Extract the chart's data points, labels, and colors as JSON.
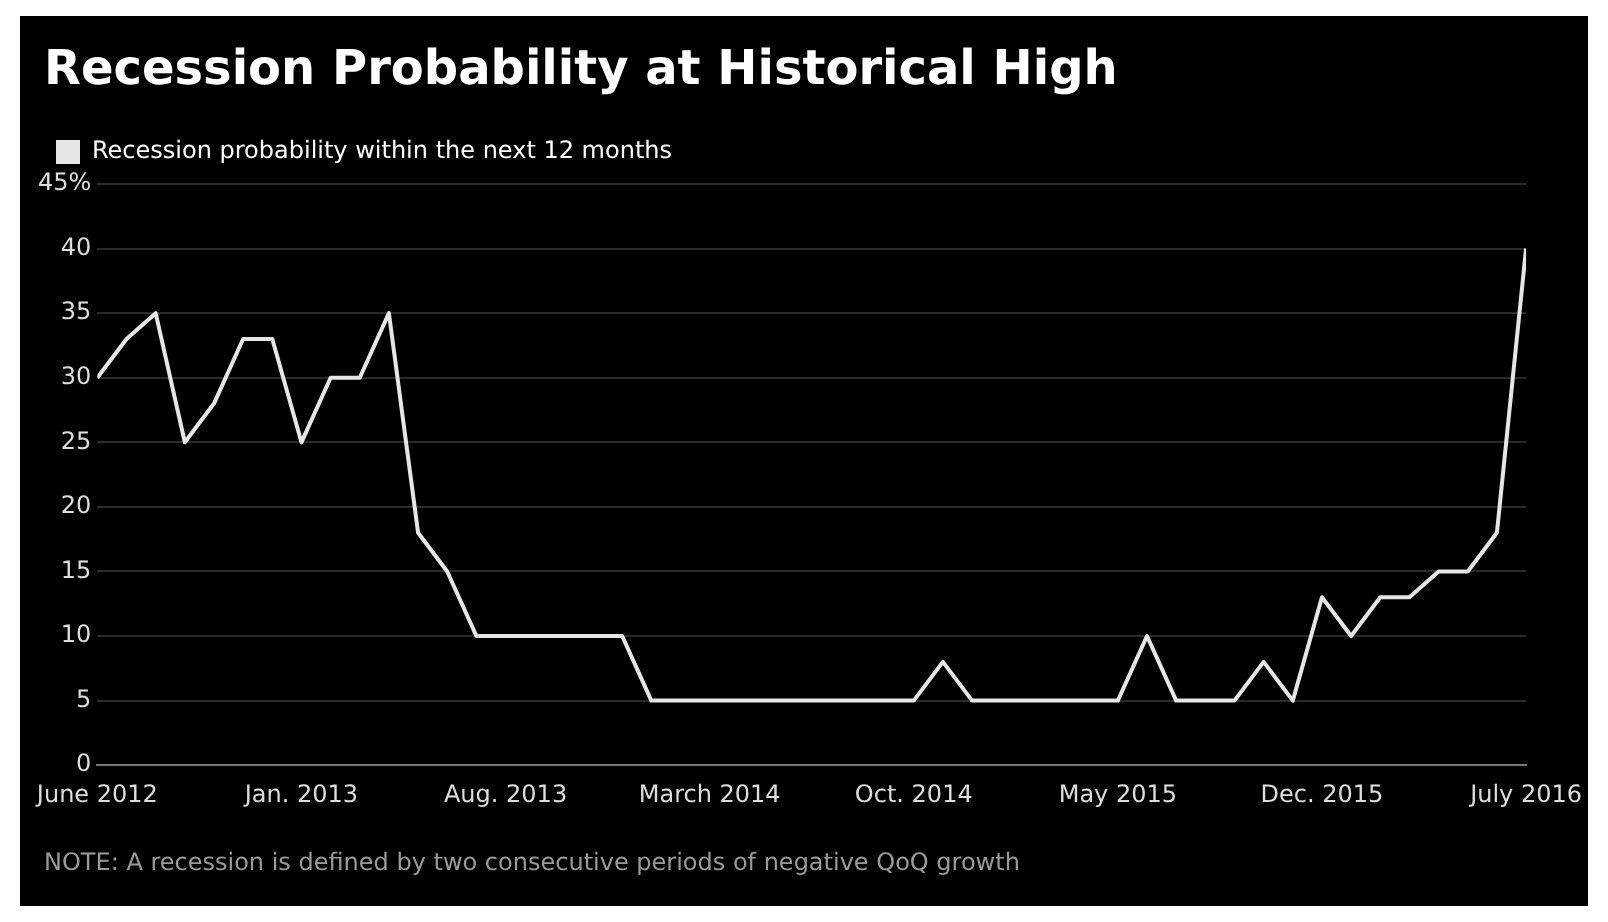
{
  "chart_data": {
    "type": "line",
    "title": "Recession Probability at Historical High",
    "x": [
      "2012-06",
      "2012-07",
      "2012-08",
      "2012-09",
      "2012-10",
      "2012-11",
      "2012-12",
      "2013-01",
      "2013-02",
      "2013-03",
      "2013-04",
      "2013-05",
      "2013-06",
      "2013-07",
      "2013-08",
      "2013-09",
      "2013-10",
      "2013-11",
      "2013-12",
      "2014-01",
      "2014-02",
      "2014-03",
      "2014-04",
      "2014-05",
      "2014-06",
      "2014-07",
      "2014-08",
      "2014-09",
      "2014-10",
      "2014-11",
      "2014-12",
      "2015-01",
      "2015-02",
      "2015-03",
      "2015-04",
      "2015-05",
      "2015-06",
      "2015-07",
      "2015-08",
      "2015-09",
      "2015-10",
      "2015-11",
      "2015-12",
      "2016-01",
      "2016-02",
      "2016-03",
      "2016-04",
      "2016-05",
      "2016-06",
      "2016-07"
    ],
    "series": [
      {
        "name": "Recession probability within the next 12 months",
        "color": "#e6e6e6",
        "values": [
          30,
          33,
          35,
          25,
          28,
          33,
          33,
          25,
          30,
          30,
          35,
          18,
          15,
          10,
          10,
          10,
          10,
          10,
          10,
          5,
          5,
          5,
          5,
          5,
          5,
          5,
          5,
          5,
          5,
          8,
          5,
          5,
          5,
          5,
          5,
          5,
          10,
          5,
          5,
          5,
          8,
          5,
          13,
          10,
          13,
          13,
          15,
          15,
          18,
          40
        ]
      }
    ],
    "xlim": [
      "2012-06",
      "2016-07"
    ],
    "xticks": [
      {
        "value": "2012-06",
        "label": "June 2012"
      },
      {
        "value": "2013-01",
        "label": "Jan. 2013"
      },
      {
        "value": "2013-08",
        "label": "Aug. 2013"
      },
      {
        "value": "2014-03",
        "label": "March 2014"
      },
      {
        "value": "2014-10",
        "label": "Oct. 2014"
      },
      {
        "value": "2015-05",
        "label": "May 2015"
      },
      {
        "value": "2015-12",
        "label": "Dec. 2015"
      },
      {
        "value": "2016-07",
        "label": "July 2016"
      }
    ],
    "ylim": [
      0,
      45
    ],
    "yticks": [
      0,
      5,
      10,
      15,
      20,
      25,
      30,
      35,
      40,
      {
        "value": 45,
        "label": "45%"
      }
    ],
    "grid": "y",
    "legend": "top left",
    "marker": "none",
    "line_style": "solid",
    "annotations": [
      "NOTE: A recession is defined by two consecutive periods of negative QoQ growth"
    ]
  }
}
